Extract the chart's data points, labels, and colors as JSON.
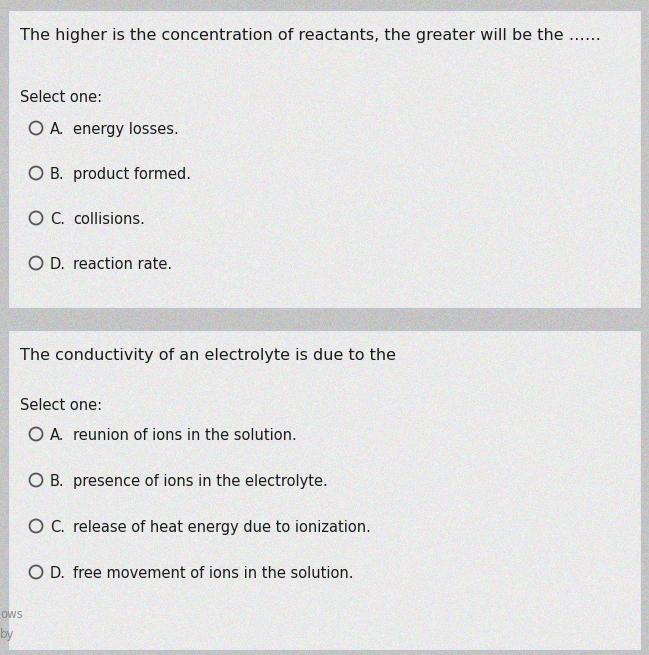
{
  "bg_color": "#c8c8c8",
  "box_bg": "#e8eaf0",
  "box_edge": "#c0c2cc",
  "text_color": "#1a1a1a",
  "q1_title": "The higher is the concentration of reactants, the greater will be the ……",
  "q1_select": "Select one:",
  "q1_options": [
    [
      "A.",
      "energy losses."
    ],
    [
      "B.",
      "product formed."
    ],
    [
      "C.",
      "collisions."
    ],
    [
      "D.",
      "reaction rate."
    ]
  ],
  "q2_title": "The conductivity of an electrolyte is due to the",
  "q2_select": "Select one:",
  "q2_options": [
    [
      "A.",
      "reunion of ions in the solution."
    ],
    [
      "B.",
      "presence of ions in the electrolyte."
    ],
    [
      "C.",
      "release of heat energy due to ionization."
    ],
    [
      "D.",
      "free movement of ions in the solution."
    ]
  ],
  "watermark1": "ows",
  "watermark2": "by",
  "circle_color": "#555555",
  "font_size_title": 11.5,
  "font_size_select": 10.5,
  "font_size_option": 10.5,
  "noise_seed": 42,
  "noise_alpha": 0.18,
  "fig_width": 6.49,
  "fig_height": 6.55,
  "dpi": 100
}
